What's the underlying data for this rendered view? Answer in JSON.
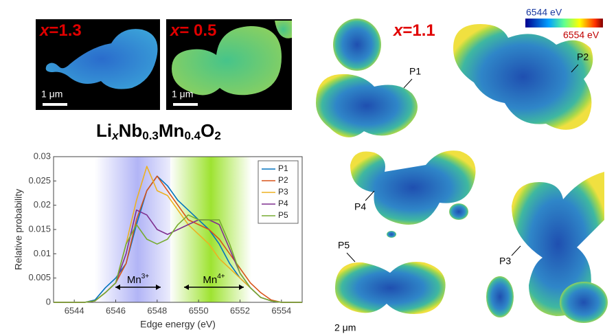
{
  "images": {
    "panel_a": {
      "label": {
        "var": "x",
        "value": "=1.3"
      },
      "scale_bar": "1 μm"
    },
    "panel_b": {
      "label": {
        "var": "x",
        "value": "= 0.5"
      },
      "scale_bar": "1 μm"
    },
    "formula": [
      "Li",
      "x",
      "Nb",
      "0.3",
      "Mn",
      "0.4",
      "O",
      "2"
    ],
    "map": {
      "label": {
        "var": "x",
        "value": "=1.1"
      },
      "colorbar_min": "6544 eV",
      "colorbar_max": "6554 eV",
      "points": [
        "P1",
        "P2",
        "P3",
        "P4",
        "P5"
      ],
      "scale_bar": "2 μm"
    }
  },
  "chart_data": {
    "type": "line",
    "xlabel": "Edge energy (eV)",
    "ylabel": "Relative probability",
    "x": [
      6543,
      6543.5,
      6544,
      6544.5,
      6545,
      6545.5,
      6546,
      6546.5,
      6547,
      6547.5,
      6548,
      6548.5,
      6549,
      6549.5,
      6550,
      6550.5,
      6551,
      6551.5,
      6552,
      6552.5,
      6553,
      6553.5,
      6554,
      6554.5,
      6555
    ],
    "xlim": [
      6543,
      6555
    ],
    "xticks": [
      6544,
      6546,
      6548,
      6550,
      6552,
      6554
    ],
    "ylim": [
      0,
      0.03
    ],
    "yticks": [
      0,
      0.005,
      0.01,
      0.015,
      0.02,
      0.025,
      0.03
    ],
    "legend": "northeast",
    "annotations": [
      {
        "text": "Mn",
        "sup": "3+"
      },
      {
        "text": "Mn",
        "sup": "4+"
      }
    ],
    "series": [
      {
        "name": "P1",
        "color": "#0072bd",
        "values": [
          0,
          0,
          0,
          0,
          0.0005,
          0.003,
          0.005,
          0.008,
          0.016,
          0.023,
          0.026,
          0.024,
          0.021,
          0.019,
          0.017,
          0.015,
          0.012,
          0.008,
          0.005,
          0.003,
          0.001,
          0.0003,
          0,
          0,
          0
        ]
      },
      {
        "name": "P2",
        "color": "#d95319",
        "values": [
          0,
          0,
          0,
          0,
          0.0003,
          0.002,
          0.004,
          0.008,
          0.017,
          0.023,
          0.026,
          0.023,
          0.02,
          0.017,
          0.016,
          0.015,
          0.013,
          0.01,
          0.007,
          0.004,
          0.002,
          0.0005,
          0,
          0,
          0
        ]
      },
      {
        "name": "P3",
        "color": "#edb120",
        "values": [
          0,
          0,
          0,
          0,
          0.0003,
          0.002,
          0.004,
          0.012,
          0.021,
          0.028,
          0.023,
          0.022,
          0.019,
          0.016,
          0.014,
          0.012,
          0.009,
          0.007,
          0.005,
          0.003,
          0.001,
          0.0003,
          0,
          0,
          0
        ]
      },
      {
        "name": "P4",
        "color": "#7e2f8e",
        "values": [
          0,
          0,
          0,
          0,
          0.0003,
          0.002,
          0.004,
          0.01,
          0.019,
          0.018,
          0.015,
          0.014,
          0.015,
          0.016,
          0.017,
          0.017,
          0.016,
          0.011,
          0.006,
          0.003,
          0.001,
          0.0003,
          0,
          0,
          0
        ]
      },
      {
        "name": "P5",
        "color": "#77ac30",
        "values": [
          0,
          0,
          0,
          0,
          0.0003,
          0.002,
          0.004,
          0.012,
          0.016,
          0.013,
          0.012,
          0.013,
          0.016,
          0.018,
          0.017,
          0.017,
          0.017,
          0.012,
          0.006,
          0.003,
          0.001,
          0.0003,
          0,
          0,
          0
        ]
      }
    ]
  }
}
